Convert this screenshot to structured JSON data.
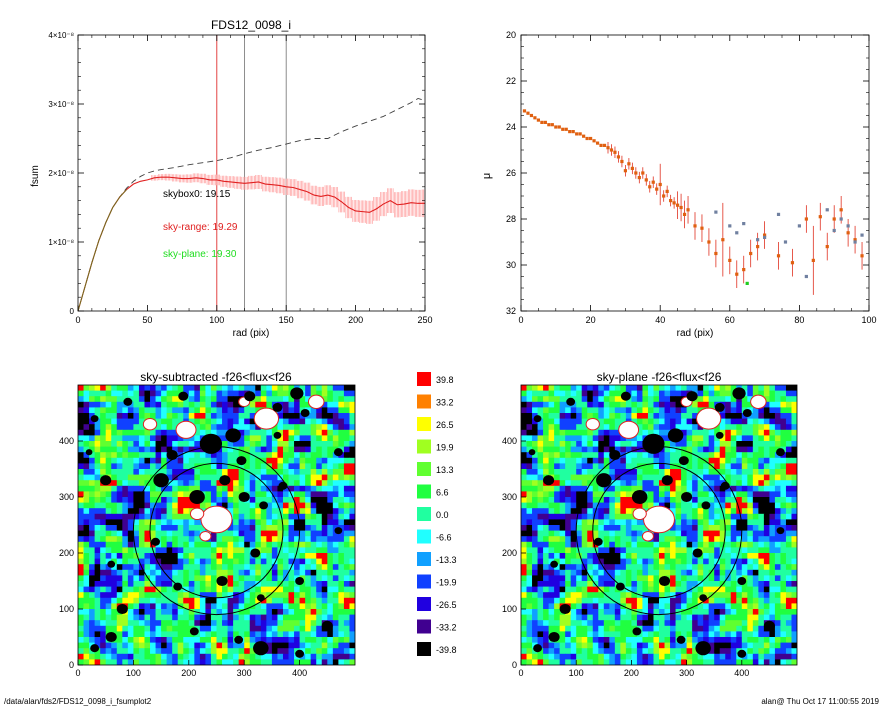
{
  "footer": {
    "left": "/data/alan/fds2/FDS12_0098_i_fsumplot2",
    "right": "alan@  Thu Oct 17 11:00:55 2019"
  },
  "chart_data": [
    {
      "type": "line",
      "title": "FDS12_0098_i",
      "xlabel": "rad (pix)",
      "ylabel": "fsum",
      "xlim": [
        0,
        250
      ],
      "ylim": [
        0,
        4e-08
      ],
      "xticks": [
        "0",
        "50",
        "100",
        "150",
        "200",
        "250"
      ],
      "yticks": [
        "0",
        "1×10⁻⁸",
        "2×10⁻⁸",
        "3×10⁻⁸",
        "4×10⁻⁸"
      ],
      "vlines": [
        {
          "x": 100,
          "color": "#e03030"
        },
        {
          "x": 120,
          "color": "#808080"
        },
        {
          "x": 150,
          "color": "#808080"
        }
      ],
      "annotations": [
        {
          "text": "skybox0: 19.15",
          "color": "#000000"
        },
        {
          "text": "sky-range: 19.29",
          "color": "#e02020"
        },
        {
          "text": "sky-plane: 19.30",
          "color": "#20dd20"
        }
      ],
      "series": [
        {
          "color": "#404040",
          "style": "dashed",
          "x": [
            0,
            5,
            10,
            15,
            20,
            25,
            30,
            35,
            40,
            45,
            50,
            55,
            60,
            70,
            80,
            90,
            100,
            110,
            120,
            130,
            140,
            150,
            160,
            170,
            180,
            190,
            200,
            210,
            220,
            230,
            240,
            245,
            250
          ],
          "y": [
            0,
            0.35,
            0.7,
            1.02,
            1.28,
            1.5,
            1.65,
            1.78,
            1.88,
            1.95,
            2.0,
            2.03,
            2.05,
            2.08,
            2.12,
            2.15,
            2.18,
            2.22,
            2.28,
            2.33,
            2.37,
            2.42,
            2.47,
            2.5,
            2.5,
            2.6,
            2.68,
            2.75,
            2.82,
            2.92,
            3.02,
            3.08,
            3.05
          ]
        },
        {
          "color": "#e02020",
          "style": "solid",
          "errors": true,
          "x": [
            0,
            5,
            10,
            15,
            20,
            25,
            30,
            35,
            40,
            45,
            50,
            55,
            60,
            65,
            70,
            75,
            80,
            85,
            90,
            95,
            100,
            105,
            110,
            115,
            120,
            125,
            130,
            135,
            140,
            145,
            150,
            155,
            160,
            165,
            170,
            175,
            180,
            185,
            190,
            195,
            200,
            205,
            210,
            215,
            220,
            225,
            230,
            235,
            240,
            245,
            250
          ],
          "y": [
            0,
            0.35,
            0.7,
            1.02,
            1.28,
            1.5,
            1.65,
            1.76,
            1.84,
            1.88,
            1.9,
            1.93,
            1.94,
            1.94,
            1.93,
            1.92,
            1.92,
            1.93,
            1.92,
            1.9,
            1.9,
            1.88,
            1.87,
            1.86,
            1.85,
            1.86,
            1.87,
            1.84,
            1.83,
            1.82,
            1.8,
            1.79,
            1.76,
            1.73,
            1.68,
            1.66,
            1.68,
            1.65,
            1.58,
            1.5,
            1.45,
            1.44,
            1.43,
            1.48,
            1.55,
            1.6,
            1.54,
            1.55,
            1.57,
            1.56,
            1.56
          ]
        }
      ]
    },
    {
      "type": "scatter",
      "title": "",
      "xlabel": "rad (pix)",
      "ylabel": "μ",
      "xlim": [
        0,
        100
      ],
      "ylim": [
        32,
        20
      ],
      "xticks": [
        "0",
        "20",
        "40",
        "60",
        "80",
        "100"
      ],
      "yticks": [
        "20",
        "22",
        "24",
        "26",
        "28",
        "30",
        "32"
      ],
      "series": [
        {
          "color": "#e06010",
          "x": [
            1,
            2,
            3,
            4,
            5,
            6,
            7,
            8,
            9,
            10,
            11,
            12,
            13,
            14,
            15,
            16,
            17,
            18,
            19,
            20,
            21,
            22,
            23,
            24,
            25,
            26,
            27,
            28,
            29,
            30,
            31,
            32,
            33,
            34,
            35,
            36,
            37,
            38,
            39,
            40,
            41,
            42,
            43,
            44,
            45,
            46,
            47,
            48,
            50,
            52,
            54,
            56,
            58,
            60,
            62,
            64,
            66,
            68,
            70,
            74,
            78,
            82,
            84,
            86,
            88,
            90,
            92,
            94,
            96,
            98
          ],
          "y": [
            23.3,
            23.4,
            23.5,
            23.6,
            23.7,
            23.8,
            23.8,
            23.9,
            23.9,
            24.0,
            24.0,
            24.1,
            24.1,
            24.2,
            24.2,
            24.3,
            24.3,
            24.4,
            24.5,
            24.5,
            24.6,
            24.7,
            24.8,
            24.8,
            24.9,
            25.0,
            25.1,
            25.3,
            25.5,
            25.9,
            25.6,
            25.8,
            26.0,
            26.2,
            26.0,
            26.3,
            26.6,
            26.4,
            26.7,
            26.5,
            27.0,
            26.8,
            27.2,
            27.3,
            27.4,
            27.5,
            27.8,
            27.6,
            28.3,
            28.4,
            29.0,
            29.5,
            28.9,
            29.8,
            30.4,
            30.2,
            29.5,
            29.2,
            28.7,
            29.6,
            29.9,
            28.0,
            29.8,
            27.9,
            29.2,
            28.0,
            27.6,
            28.6,
            28.9,
            29.6
          ]
        },
        {
          "color": "#20cc20",
          "x": [
            65
          ],
          "y": [
            30.8
          ]
        },
        {
          "color": "#7080a0",
          "x": [
            56,
            60,
            62,
            64,
            68,
            70,
            74,
            76,
            80,
            82,
            88,
            90,
            92,
            94,
            96,
            98
          ],
          "y": [
            27.7,
            28.3,
            28.6,
            28.2,
            28.9,
            28.8,
            27.8,
            29.0,
            28.3,
            30.5,
            27.6,
            28.5,
            28.0,
            28.3,
            29.0,
            28.7
          ]
        }
      ]
    },
    {
      "type": "heatmap",
      "title": "sky-subtracted -f26<flux<f26",
      "xlim": [
        0,
        500
      ],
      "ylim": [
        0,
        500
      ],
      "xticks": [
        "0",
        "100",
        "200",
        "300",
        "400"
      ],
      "yticks": [
        "0",
        "100",
        "200",
        "300",
        "400"
      ]
    },
    {
      "type": "heatmap",
      "title": "sky-plane -f26<flux<f26",
      "xlim": [
        0,
        500
      ],
      "ylim": [
        0,
        500
      ],
      "xticks": [
        "0",
        "100",
        "200",
        "300",
        "400"
      ],
      "yticks": [
        "0",
        "100",
        "200",
        "300",
        "400"
      ]
    },
    {
      "type": "colorbar",
      "levels": [
        {
          "label": "39.8",
          "color": "#ff0000"
        },
        {
          "label": "33.2",
          "color": "#ff8000"
        },
        {
          "label": "26.5",
          "color": "#ffff00"
        },
        {
          "label": "19.9",
          "color": "#a0ff20"
        },
        {
          "label": "13.3",
          "color": "#60ff30"
        },
        {
          "label": "6.6",
          "color": "#20ff40"
        },
        {
          "label": "0.0",
          "color": "#20ffa0"
        },
        {
          "label": "-6.6",
          "color": "#20ffff"
        },
        {
          "label": "-13.3",
          "color": "#10a0ff"
        },
        {
          "label": "-19.9",
          "color": "#1040ff"
        },
        {
          "label": "-26.5",
          "color": "#2000e0"
        },
        {
          "label": "-33.2",
          "color": "#400090"
        },
        {
          "label": "-39.8",
          "color": "#000000"
        }
      ]
    }
  ]
}
